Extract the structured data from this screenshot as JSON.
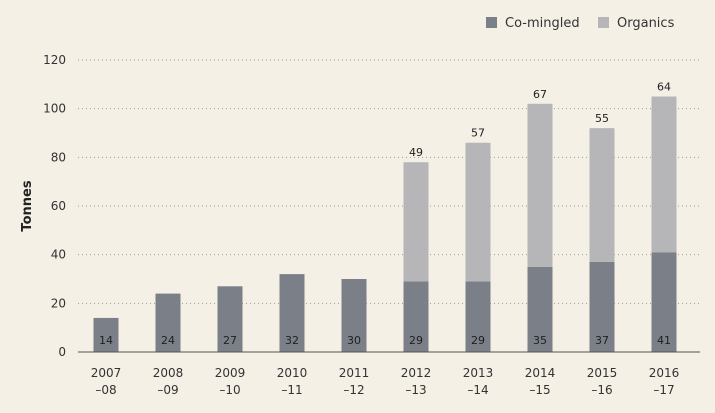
{
  "chart_data": {
    "type": "bar",
    "stacked": true,
    "title": "",
    "xlabel": "",
    "ylabel": "Tonnes",
    "ylim": [
      0,
      120
    ],
    "yticks": [
      0,
      20,
      40,
      60,
      80,
      100,
      120
    ],
    "grid": "horizontal-dotted",
    "legend_position": "top-right",
    "categories": [
      [
        "2007",
        "–08"
      ],
      [
        "2008",
        "–09"
      ],
      [
        "2009",
        "–10"
      ],
      [
        "2010",
        "–11"
      ],
      [
        "2011",
        "–12"
      ],
      [
        "2012",
        "–13"
      ],
      [
        "2013",
        "–14"
      ],
      [
        "2014",
        "–15"
      ],
      [
        "2015",
        "–16"
      ],
      [
        "2016",
        "–17"
      ]
    ],
    "series": [
      {
        "name": "Co-mingled",
        "color": "#7b7f88",
        "values": [
          14,
          24,
          27,
          32,
          30,
          29,
          29,
          35,
          37,
          41
        ]
      },
      {
        "name": "Organics",
        "color": "#b6b6b8",
        "values": [
          0,
          0,
          0,
          0,
          0,
          49,
          57,
          67,
          55,
          64
        ]
      }
    ],
    "inside_labels": [
      "14",
      "24",
      "27",
      "32",
      "30",
      "29",
      "29",
      "35",
      "37",
      "41"
    ],
    "top_labels": [
      "",
      "",
      "",
      "",
      "",
      "49",
      "57",
      "67",
      "55",
      "64"
    ]
  }
}
